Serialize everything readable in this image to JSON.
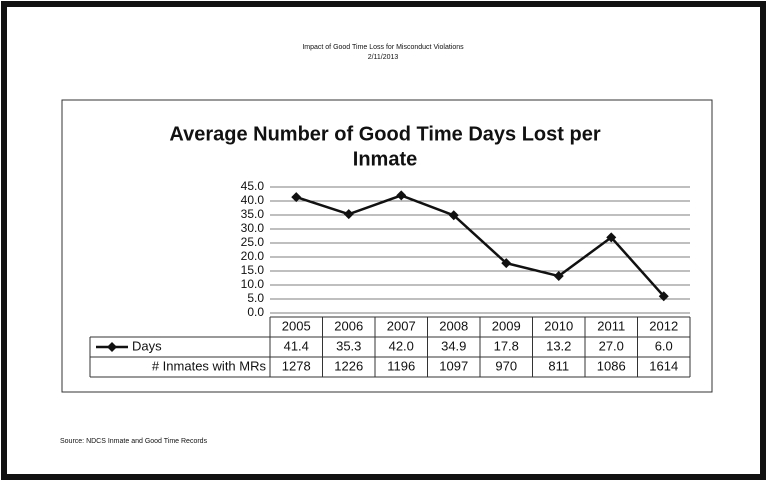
{
  "header": {
    "title": "Impact of Good Time Loss for Misconduct Violations",
    "date": "2/11/2013"
  },
  "chart_data": {
    "type": "line",
    "title": "Average Number of Good Time Days Lost per Inmate",
    "categories": [
      "2005",
      "2006",
      "2007",
      "2008",
      "2009",
      "2010",
      "2011",
      "2012"
    ],
    "series": [
      {
        "name": "Days",
        "color": "#111111",
        "values": [
          41.4,
          35.3,
          42.0,
          34.9,
          17.8,
          13.2,
          27.0,
          6.0
        ],
        "value_labels": [
          "41.4",
          "35.3",
          "42.0",
          "34.9",
          "17.8",
          "13.2",
          "27.0",
          "6.0"
        ]
      }
    ],
    "data_table": {
      "name": "# Inmates with MRs",
      "values": [
        1278,
        1226,
        1196,
        1097,
        970,
        811,
        1086,
        1614
      ]
    },
    "ylim": [
      0,
      45
    ],
    "yticks": [
      {
        "value": 0,
        "label": "0.0"
      },
      {
        "value": 5,
        "label": "5.0"
      },
      {
        "value": 10,
        "label": "10.0"
      },
      {
        "value": 15,
        "label": "15.0"
      },
      {
        "value": 20,
        "label": "20.0"
      },
      {
        "value": 25,
        "label": "25.0"
      },
      {
        "value": 30,
        "label": "30.0"
      },
      {
        "value": 35,
        "label": "35.0"
      },
      {
        "value": 40,
        "label": "40.0"
      },
      {
        "value": 45,
        "label": "45.0"
      }
    ],
    "grid": true
  },
  "footer": {
    "source": "Source: NDCS Inmate and Good Time Records"
  }
}
